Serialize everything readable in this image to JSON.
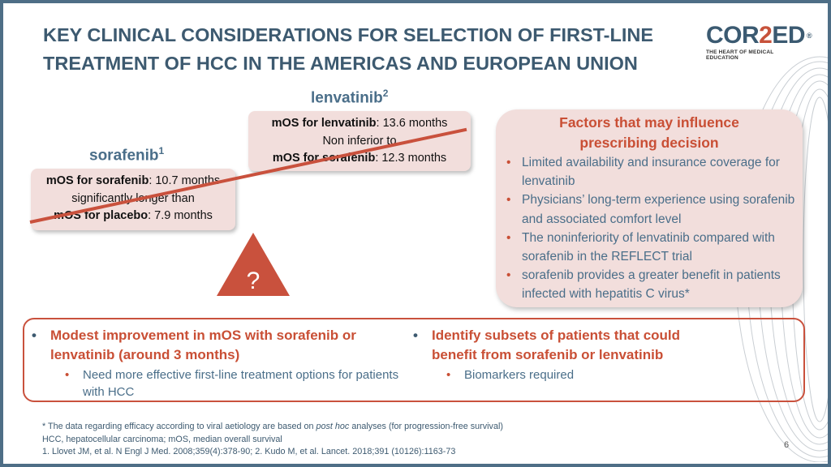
{
  "title": {
    "line1": "KEY CLINICAL CONSIDERATIONS FOR SELECTION OF FIRST-LINE",
    "line2": "TREATMENT OF HCC IN THE AMERICAS AND EUROPEAN UNION"
  },
  "logo": {
    "part1": "COR",
    "part2": "2",
    "part3": "ED",
    "reg": "®",
    "tagline": "THE HEART OF MEDICAL EDUCATION"
  },
  "lenvatinib": {
    "name": "lenvatinib",
    "sup": "2",
    "line1_bold": "mOS for lenvatinib",
    "line1_rest": ": 13.6 months",
    "line2": "Non inferior to",
    "line3_bold": "mOS for sorafenib",
    "line3_rest": ": 12.3 months"
  },
  "sorafenib": {
    "name": "sorafenib",
    "sup": "1",
    "line1_bold": "mOS for sorafenib",
    "line1_rest": ": 10.7 months",
    "line2": "significantly longer than",
    "line3_bold": "mOS for placebo",
    "line3_rest": ": 7.9 months"
  },
  "question_mark": "?",
  "factors": {
    "title_line1": "Factors that may influence",
    "title_line2": "prescribing decision",
    "bullet": "•",
    "items": [
      "Limited availability and insurance coverage for lenvatinib",
      "Physicians’ long-term experience using sorafenib and associated comfort level",
      "The noninferiority of lenvatinib compared with sorafenib in the REFLECT trial",
      "sorafenib provides a greater benefit in patients infected with hepatitis C virus*"
    ]
  },
  "bottom": {
    "left_main": "Modest improvement in mOS with sorafenib or lenvatinib (around 3 months)",
    "left_sub": "Need more effective first-line treatment options for patients with HCC",
    "right_main": "Identify subsets of patients that could benefit from sorafenib or lenvatinib",
    "right_sub": "Biomarkers required",
    "bullet": "•"
  },
  "footnotes": {
    "line1_pre": "* The data regarding efficacy according to viral aetiology are based on ",
    "line1_italic": "post hoc",
    "line1_post": " analyses (for progression-free survival)",
    "line2": "HCC, hepatocellular carcinoma; mOS, median overall survival",
    "line3": "1. Llovet JM, et al. N Engl J Med. 2008;359(4):378-90;  2. Kudo M, et al. Lancet. 2018;391 (10126):1163-73"
  },
  "page_number": "6",
  "colors": {
    "accent_red": "#c94f35",
    "title_blue": "#3d5a70",
    "box_pink": "#f2dedc",
    "frame": "#4e6e86"
  }
}
